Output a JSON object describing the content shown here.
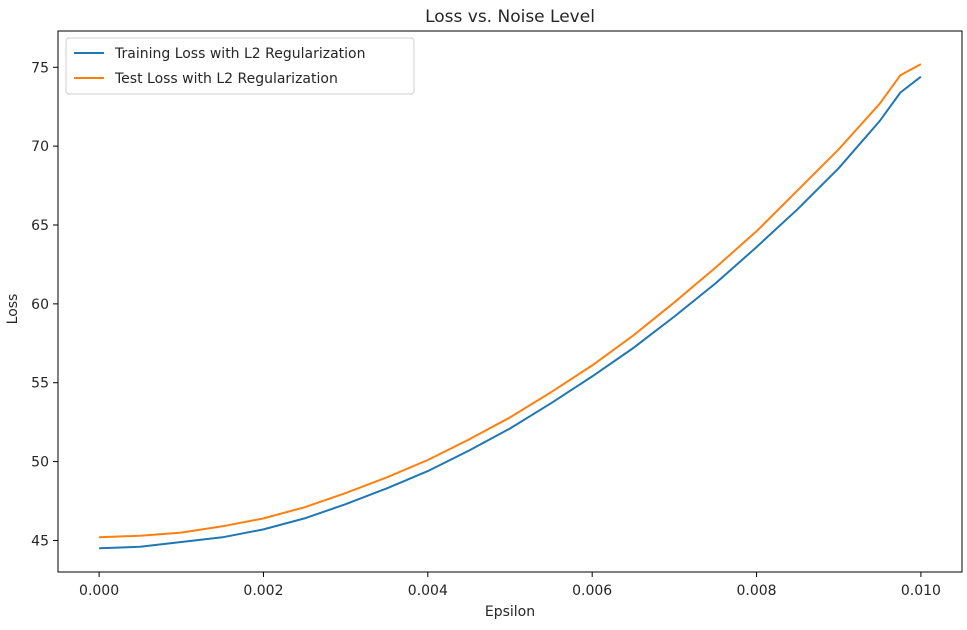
{
  "chart_data": {
    "type": "line",
    "title": "Loss vs. Noise Level",
    "xlabel": "Epsilon",
    "ylabel": "Loss",
    "xlim": [
      -0.0005,
      0.0105
    ],
    "ylim": [
      43.0,
      77.3
    ],
    "xticks": [
      0.0,
      0.002,
      0.004,
      0.006,
      0.008,
      0.01
    ],
    "xtick_labels": [
      "0.000",
      "0.002",
      "0.004",
      "0.006",
      "0.008",
      "0.010"
    ],
    "yticks": [
      45,
      50,
      55,
      60,
      65,
      70,
      75
    ],
    "ytick_labels": [
      "45",
      "50",
      "55",
      "60",
      "65",
      "70",
      "75"
    ],
    "grid": false,
    "legend_position": "top-left",
    "x": [
      0.0,
      0.0005,
      0.001,
      0.0015,
      0.002,
      0.0025,
      0.003,
      0.0035,
      0.004,
      0.0045,
      0.005,
      0.0055,
      0.006,
      0.0065,
      0.007,
      0.0075,
      0.008,
      0.0085,
      0.009,
      0.0095,
      0.00975,
      0.01
    ],
    "series": [
      {
        "name": "Training Loss with L2 Regularization",
        "color": "#1f77b4",
        "values": [
          44.5,
          44.6,
          44.9,
          45.2,
          45.7,
          46.4,
          47.3,
          48.3,
          49.4,
          50.7,
          52.1,
          53.7,
          55.4,
          57.2,
          59.2,
          61.3,
          63.6,
          66.0,
          68.6,
          71.6,
          73.4,
          74.4
        ]
      },
      {
        "name": "Test Loss with L2 Regularization",
        "color": "#ff7f0e",
        "values": [
          45.2,
          45.3,
          45.5,
          45.9,
          46.4,
          47.1,
          48.0,
          49.0,
          50.1,
          51.4,
          52.8,
          54.4,
          56.1,
          58.0,
          60.1,
          62.3,
          64.6,
          67.2,
          69.8,
          72.7,
          74.5,
          75.2
        ]
      }
    ]
  }
}
